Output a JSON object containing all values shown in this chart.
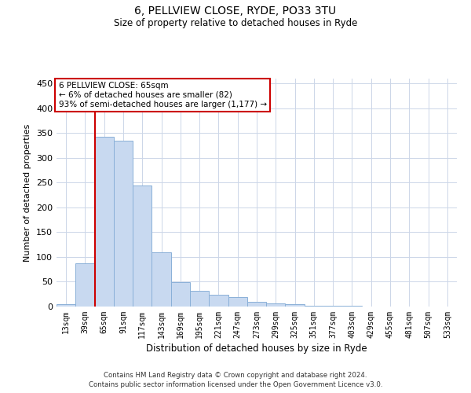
{
  "title1": "6, PELLVIEW CLOSE, RYDE, PO33 3TU",
  "title2": "Size of property relative to detached houses in Ryde",
  "xlabel": "Distribution of detached houses by size in Ryde",
  "ylabel": "Number of detached properties",
  "categories": [
    "13sqm",
    "39sqm",
    "65sqm",
    "91sqm",
    "117sqm",
    "143sqm",
    "169sqm",
    "195sqm",
    "221sqm",
    "247sqm",
    "273sqm",
    "299sqm",
    "325sqm",
    "351sqm",
    "377sqm",
    "403sqm",
    "429sqm",
    "455sqm",
    "481sqm",
    "507sqm",
    "533sqm"
  ],
  "values": [
    5,
    88,
    342,
    335,
    244,
    110,
    49,
    31,
    24,
    19,
    9,
    6,
    4,
    2,
    2,
    1,
    0.5,
    0.5,
    0.5,
    0.5,
    0.5
  ],
  "bar_color": "#c8d9f0",
  "bar_edge_color": "#8ab0d8",
  "red_line_index": 2,
  "annotation_line1": "6 PELLVIEW CLOSE: 65sqm",
  "annotation_line2": "← 6% of detached houses are smaller (82)",
  "annotation_line3": "93% of semi-detached houses are larger (1,177) →",
  "annotation_box_color": "#ffffff",
  "annotation_box_edge": "#cc0000",
  "red_line_color": "#cc0000",
  "ylim": [
    0,
    460
  ],
  "yticks": [
    0,
    50,
    100,
    150,
    200,
    250,
    300,
    350,
    400,
    450
  ],
  "footer1": "Contains HM Land Registry data © Crown copyright and database right 2024.",
  "footer2": "Contains public sector information licensed under the Open Government Licence v3.0.",
  "background_color": "#ffffff",
  "grid_color": "#ccd6e8"
}
